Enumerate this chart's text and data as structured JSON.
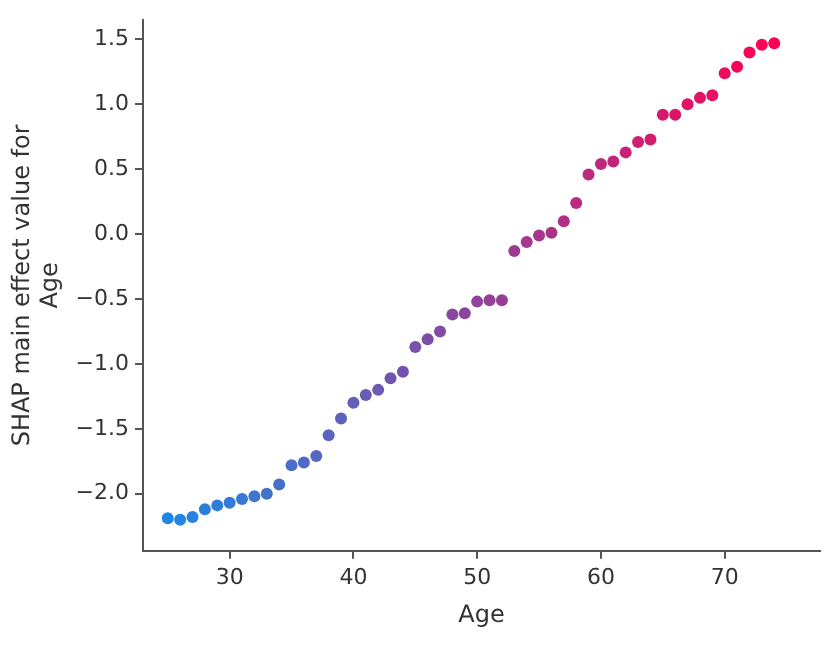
{
  "chart_data": {
    "type": "scatter",
    "xlabel": "Age",
    "ylabel": "SHAP main effect value for Age",
    "x": [
      25,
      26,
      27,
      28,
      29,
      30,
      31,
      32,
      33,
      34,
      35,
      36,
      37,
      38,
      39,
      40,
      41,
      42,
      43,
      44,
      45,
      46,
      47,
      48,
      49,
      50,
      51,
      52,
      53,
      54,
      55,
      56,
      57,
      58,
      59,
      60,
      61,
      62,
      63,
      64,
      65,
      66,
      67,
      68,
      69,
      70,
      71,
      72,
      73,
      74
    ],
    "values": [
      -2.19,
      -2.2,
      -2.18,
      -2.12,
      -2.09,
      -2.07,
      -2.04,
      -2.02,
      -2.0,
      -1.93,
      -1.78,
      -1.76,
      -1.71,
      -1.55,
      -1.42,
      -1.3,
      -1.24,
      -1.2,
      -1.11,
      -1.06,
      -0.87,
      -0.81,
      -0.75,
      -0.62,
      -0.61,
      -0.52,
      -0.51,
      -0.51,
      -0.13,
      -0.06,
      -0.01,
      0.01,
      0.1,
      0.24,
      0.46,
      0.54,
      0.56,
      0.63,
      0.71,
      0.73,
      0.92,
      0.92,
      1.0,
      1.05,
      1.07,
      1.24,
      1.29,
      1.4,
      1.46,
      1.47
    ],
    "colors": [
      "#1e88e5",
      "#2385e2",
      "#2782df",
      "#2c80dc",
      "#307dd9",
      "#357ad6",
      "#3977d3",
      "#3e75d0",
      "#4372cd",
      "#476fca",
      "#4c6cc7",
      "#5069c4",
      "#5567c1",
      "#5a64be",
      "#5e61bb",
      "#635eb8",
      "#685cb5",
      "#6c59b2",
      "#7156af",
      "#7553ac",
      "#7a51a9",
      "#7e4ea6",
      "#834ba3",
      "#8848a0",
      "#8c459d",
      "#91439a",
      "#954097",
      "#9a3d94",
      "#9f3a91",
      "#a3388e",
      "#a8358b",
      "#ac3288",
      "#b12f85",
      "#b52c82",
      "#ba2a7f",
      "#bf277c",
      "#c32479",
      "#c82176",
      "#cd1f73",
      "#d11c70",
      "#d6196d",
      "#da166a",
      "#df1367",
      "#e41164",
      "#e80e61",
      "#ed0b5e",
      "#f1085b",
      "#f60658",
      "#fa0355",
      "#ff0052"
    ],
    "xlim": [
      23,
      77.7
    ],
    "ylim": [
      -2.44,
      1.65
    ],
    "xticks": [
      30,
      40,
      50,
      60,
      70
    ],
    "yticks": [
      {
        "value": -2,
        "label": "−2.0"
      },
      {
        "value": -1.5,
        "label": "−1.5"
      },
      {
        "value": -1,
        "label": "−1.0"
      },
      {
        "value": -0.5,
        "label": "−0.5"
      },
      {
        "value": 0,
        "label": "0.0"
      },
      {
        "value": 0.5,
        "label": "0.5"
      },
      {
        "value": 1,
        "label": "1.0"
      },
      {
        "value": 1.5,
        "label": "1.5"
      }
    ],
    "grid": false,
    "legend": false,
    "marker": "circle"
  }
}
